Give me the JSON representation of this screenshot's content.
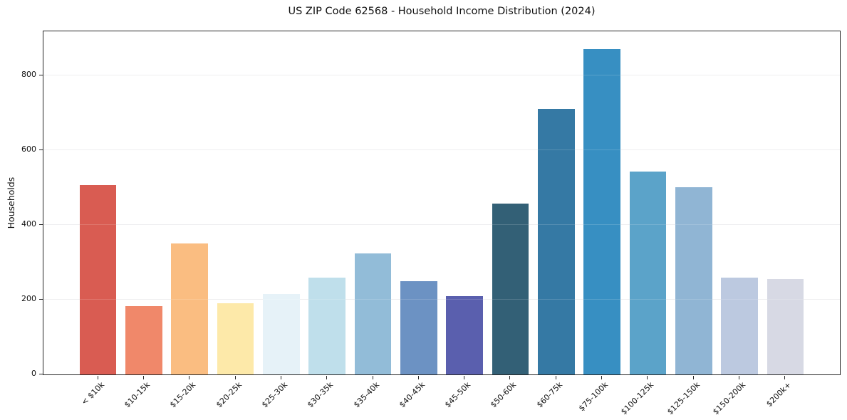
{
  "chart_data": {
    "type": "bar",
    "title": "US ZIP Code 62568 - Household Income Distribution (2024)",
    "xlabel": "",
    "ylabel": "Households",
    "categories": [
      "< $10k",
      "$10-15k",
      "$15-20k",
      "$20-25k",
      "$25-30k",
      "$30-35k",
      "$35-40k",
      "$40-45k",
      "$45-50k",
      "$50-60k",
      "$60-75k",
      "$75-100k",
      "$100-125k",
      "$125-150k",
      "$150-200k",
      "$200k+"
    ],
    "values": [
      507,
      183,
      350,
      190,
      215,
      260,
      323,
      250,
      210,
      457,
      710,
      870,
      543,
      500,
      260,
      255
    ],
    "bar_colors": [
      "#d95c52",
      "#f0886a",
      "#fabd81",
      "#fde9a9",
      "#e6f2f8",
      "#bfdfeb",
      "#92bcd8",
      "#6c92c3",
      "#5a5fae",
      "#336076",
      "#3579a4",
      "#378fc2",
      "#5ba3c9",
      "#90b5d4",
      "#bcc9e0",
      "#d7d9e4"
    ],
    "yticks": [
      0,
      200,
      400,
      600,
      800
    ],
    "ylim": [
      0,
      918
    ],
    "xtick_rotation_deg": 45,
    "grid": true,
    "grid_color": "#ebebee",
    "axis_color": "#262626",
    "text_color": "#111111",
    "legend": "none"
  }
}
